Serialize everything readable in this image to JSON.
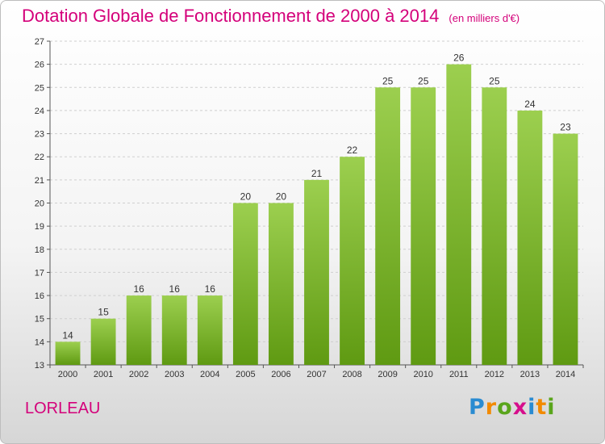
{
  "header": {
    "title": "Dotation Globale de Fonctionnement de 2000 à 2014",
    "unit": "(en milliers d'€)"
  },
  "footer": {
    "city": "LORLEAU",
    "logo_letters": [
      "P",
      "r",
      "o",
      "x",
      "i",
      "t",
      "i"
    ]
  },
  "colors": {
    "bar_top": "#9ccf4f",
    "bar_bottom": "#5f9a12",
    "title": "#d4007a"
  },
  "chart_data": {
    "type": "bar",
    "title": "Dotation Globale de Fonctionnement de 2000 à 2014",
    "subtitle": "(en milliers d'€)",
    "categories": [
      "2000",
      "2001",
      "2002",
      "2003",
      "2004",
      "2005",
      "2006",
      "2007",
      "2008",
      "2009",
      "2010",
      "2011",
      "2012",
      "2013",
      "2014"
    ],
    "values": [
      14,
      15,
      16,
      16,
      16,
      20,
      20,
      21,
      22,
      25,
      25,
      26,
      25,
      24,
      23
    ],
    "ylim": [
      13,
      27
    ],
    "yticks": [
      13,
      14,
      15,
      16,
      17,
      18,
      19,
      20,
      21,
      22,
      23,
      24,
      25,
      26,
      27
    ],
    "grid": true,
    "legend": "none"
  }
}
